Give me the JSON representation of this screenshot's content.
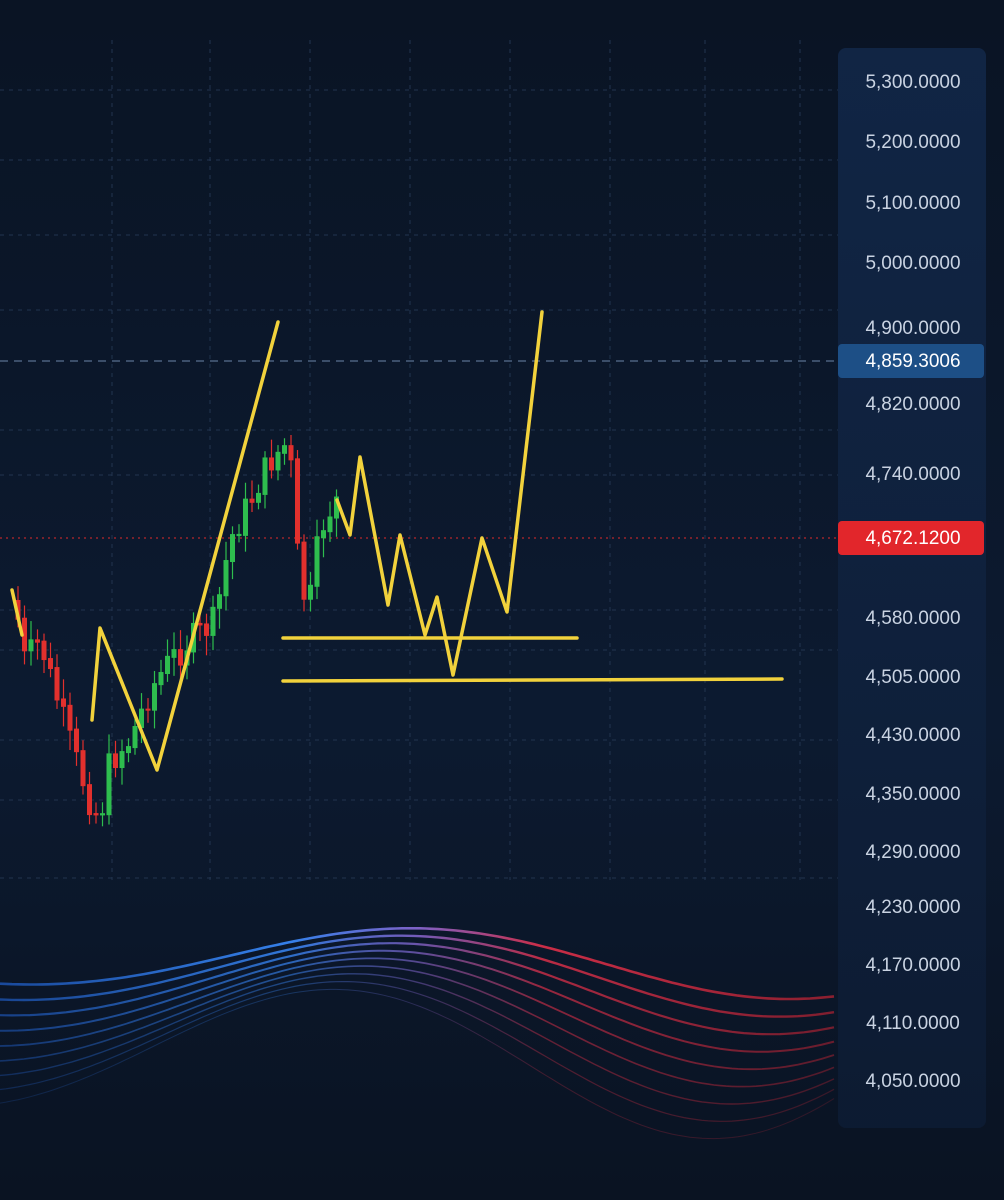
{
  "price_axis": {
    "labels": [
      "5,300.0000",
      "5,200.0000",
      "5,100.0000",
      "5,000.0000",
      "4,900.0000",
      "4,820.0000",
      "4,740.0000",
      "4,580.0000",
      "4,505.0000",
      "4,430.0000",
      "4,350.0000",
      "4,290.0000",
      "4,230.0000",
      "4,170.0000",
      "4,110.0000",
      "4,050.0000"
    ]
  },
  "markers": {
    "last_price": "4,859.3006",
    "current_price": "4,672.1200"
  }
}
